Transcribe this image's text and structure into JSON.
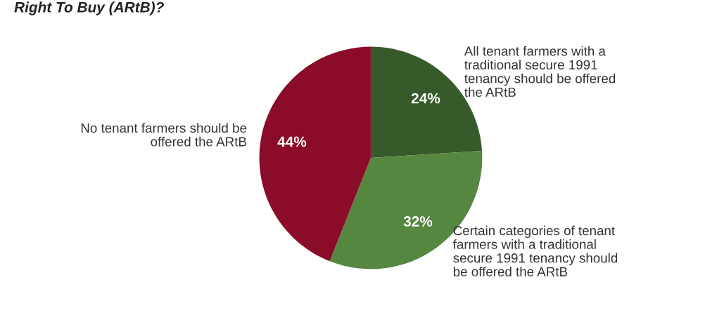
{
  "chart_data": {
    "type": "pie",
    "title": "Right To Buy (ARtB)?",
    "categories": [
      "All tenant farmers with a\ntraditional secure 1991\ntenancy should be offered\nthe ARtB",
      "Certain categories of tenant\nfarmers with a traditional\nsecure 1991 tenancy should\nbe offered the ARtB",
      "No tenant farmers should be\noffered the ARtB"
    ],
    "values": [
      24,
      32,
      44
    ],
    "colors": [
      "#375a2a",
      "#568740",
      "#8b0c28"
    ],
    "value_labels": [
      "24%",
      "32%",
      "44%"
    ]
  }
}
